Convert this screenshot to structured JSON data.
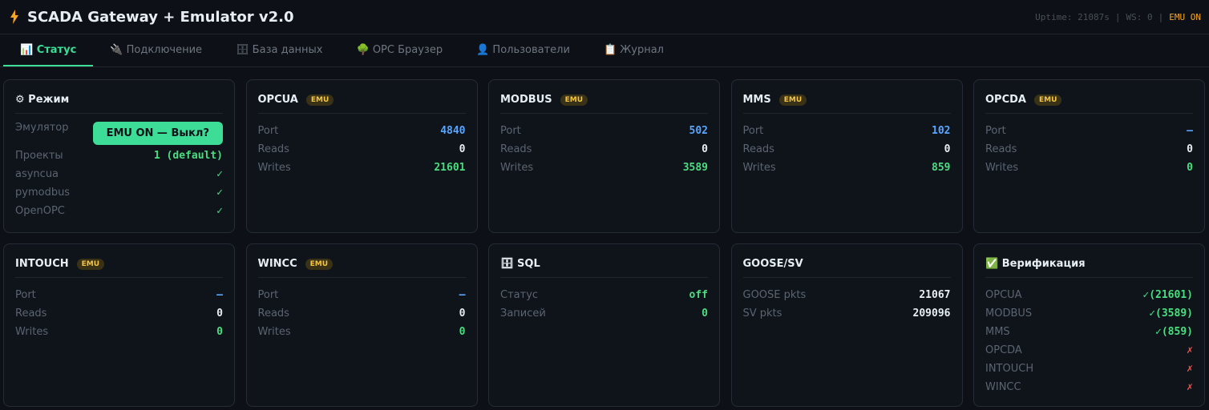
{
  "header": {
    "title": "SCADA Gateway + Emulator v2.0",
    "status": {
      "uptime": "Uptime: 21087s",
      "separator": "|",
      "ws": "WS: 0",
      "emu": "EMU ON"
    }
  },
  "tabs": {
    "active": 0,
    "items": [
      "📊 Статус",
      "🔌 Подключение",
      "🗄 База данных",
      "🌳 OPC Браузер",
      "👤 Пользователи",
      "📋 Журнал"
    ]
  },
  "cards": [
    {
      "title": "⚙ Режим",
      "rows": [
        {
          "label": "Эмулятор",
          "button": "EMU ON — Выкл?"
        },
        {
          "label": "Проекты",
          "value": "1 (default)",
          "color": "#4ade80"
        },
        {
          "label": "asyncua",
          "value": "✓",
          "color": "#4ade80"
        },
        {
          "label": "pymodbus",
          "value": "✓",
          "color": "#4ade80"
        },
        {
          "label": "OpenOPC",
          "value": "✓",
          "color": "#4ade80"
        }
      ]
    },
    {
      "title": "OPCUA",
      "badge": "EMU",
      "rows": [
        {
          "label": "Port",
          "value": 4840,
          "color": "#58a6ff"
        },
        {
          "label": "Reads",
          "value": 0,
          "color": "#e6edf3"
        },
        {
          "label": "Writes",
          "value": 21601,
          "color": "#4ade80"
        }
      ]
    },
    {
      "title": "MODBUS",
      "badge": "EMU",
      "rows": [
        {
          "label": "Port",
          "value": 502,
          "color": "#58a6ff"
        },
        {
          "label": "Reads",
          "value": 0,
          "color": "#e6edf3"
        },
        {
          "label": "Writes",
          "value": 3589,
          "color": "#4ade80"
        }
      ]
    },
    {
      "title": "MMS",
      "badge": "EMU",
      "rows": [
        {
          "label": "Port",
          "value": 102,
          "color": "#58a6ff"
        },
        {
          "label": "Reads",
          "value": 0,
          "color": "#e6edf3"
        },
        {
          "label": "Writes",
          "value": 859,
          "color": "#4ade80"
        }
      ]
    },
    {
      "title": "OPCDA",
      "badge": "EMU",
      "rows": [
        {
          "label": "Port",
          "value": "—",
          "color": "#58a6ff"
        },
        {
          "label": "Reads",
          "value": 0,
          "color": "#e6edf3"
        },
        {
          "label": "Writes",
          "value": 0,
          "color": "#4ade80"
        }
      ]
    },
    {
      "title": "INTOUCH",
      "badge": "EMU",
      "rows": [
        {
          "label": "Port",
          "value": "—",
          "color": "#58a6ff"
        },
        {
          "label": "Reads",
          "value": 0,
          "color": "#e6edf3"
        },
        {
          "label": "Writes",
          "value": 0,
          "color": "#4ade80"
        }
      ]
    },
    {
      "title": "WINCC",
      "badge": "EMU",
      "rows": [
        {
          "label": "Port",
          "value": "—",
          "color": "#58a6ff"
        },
        {
          "label": "Reads",
          "value": 0,
          "color": "#e6edf3"
        },
        {
          "label": "Writes",
          "value": 0,
          "color": "#4ade80"
        }
      ]
    },
    {
      "title": "🗄 SQL",
      "rows": [
        {
          "label": "Статус",
          "value": "off",
          "color": "#4ade80"
        },
        {
          "label": "Записей",
          "value": 0,
          "color": "#4ade80"
        }
      ]
    },
    {
      "title": "GOOSE/SV",
      "rows": [
        {
          "label": "GOOSE pkts",
          "value": 21067,
          "color": "#e6edf3"
        },
        {
          "label": "SV pkts",
          "value": 209096,
          "color": "#e6edf3"
        }
      ]
    },
    {
      "title": "✅ Верификация",
      "rows": [
        {
          "label": "OPCUA",
          "value": "✓(21601)",
          "color": "#4ade80"
        },
        {
          "label": "MODBUS",
          "value": "✓(3589)",
          "color": "#4ade80"
        },
        {
          "label": "MMS",
          "value": "✓(859)",
          "color": "#4ade80"
        },
        {
          "label": "OPCDA",
          "value": "✗",
          "color": "#f85149"
        },
        {
          "label": "INTOUCH",
          "value": "✗",
          "color": "#f85149"
        },
        {
          "label": "WINCC",
          "value": "✗",
          "color": "#f85149"
        }
      ]
    }
  ]
}
